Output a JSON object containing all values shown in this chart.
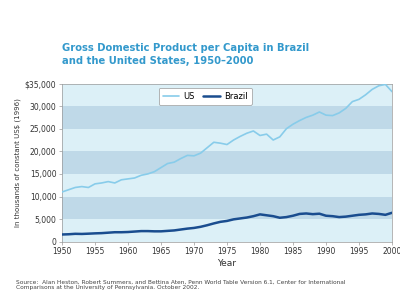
{
  "title_line1": "Gross Domestic Product per Capita in Brazil",
  "title_line2": "and the United States, 1950–2000",
  "title_color": "#3399CC",
  "xlabel": "Year",
  "ylabel": "In thousands of constant US$ (1996)",
  "ylim": [
    0,
    35000
  ],
  "yticks": [
    0,
    5000,
    10000,
    15000,
    20000,
    25000,
    30000,
    35000
  ],
  "ytick_labels": [
    "0",
    "5,000",
    "10,000",
    "15,000",
    "20,000",
    "25,000",
    "30,000",
    "$35,000"
  ],
  "xticks": [
    1950,
    1955,
    1960,
    1965,
    1970,
    1975,
    1980,
    1985,
    1990,
    1995,
    2000
  ],
  "bg_color": "#FFFFFF",
  "plot_bg_light": "#DCF0F7",
  "plot_bg_dark": "#BFD9E8",
  "us_color": "#88CCEA",
  "brazil_color": "#1A4D8F",
  "source_text": "Source:  Alan Heston, Robert Summers, and Bettina Aten, Penn World Table Version 6.1, Center for International\nComparisons at the University of Pennsylvania. October 2002.",
  "us_data": {
    "years": [
      1950,
      1951,
      1952,
      1953,
      1954,
      1955,
      1956,
      1957,
      1958,
      1959,
      1960,
      1961,
      1962,
      1963,
      1964,
      1965,
      1966,
      1967,
      1968,
      1969,
      1970,
      1971,
      1972,
      1973,
      1974,
      1975,
      1976,
      1977,
      1978,
      1979,
      1980,
      1981,
      1982,
      1983,
      1984,
      1985,
      1986,
      1987,
      1988,
      1989,
      1990,
      1991,
      1992,
      1993,
      1994,
      1995,
      1996,
      1997,
      1998,
      1999,
      2000
    ],
    "values": [
      11000,
      11500,
      12000,
      12200,
      12000,
      12800,
      13000,
      13300,
      13000,
      13700,
      13900,
      14100,
      14700,
      15000,
      15500,
      16400,
      17300,
      17600,
      18400,
      19100,
      19000,
      19600,
      20800,
      22000,
      21800,
      21500,
      22500,
      23300,
      24000,
      24500,
      23500,
      23800,
      22500,
      23200,
      25000,
      26000,
      26800,
      27500,
      28000,
      28700,
      28000,
      27900,
      28500,
      29500,
      31000,
      31500,
      32500,
      33700,
      34500,
      34800,
      33200
    ],
    "line_width": 1.2
  },
  "brazil_data": {
    "years": [
      1950,
      1951,
      1952,
      1953,
      1954,
      1955,
      1956,
      1957,
      1958,
      1959,
      1960,
      1961,
      1962,
      1963,
      1964,
      1965,
      1966,
      1967,
      1968,
      1969,
      1970,
      1971,
      1972,
      1973,
      1974,
      1975,
      1976,
      1977,
      1978,
      1979,
      1980,
      1981,
      1982,
      1983,
      1984,
      1985,
      1986,
      1987,
      1988,
      1989,
      1990,
      1991,
      1992,
      1993,
      1994,
      1995,
      1996,
      1997,
      1998,
      1999,
      2000
    ],
    "values": [
      1600,
      1650,
      1750,
      1720,
      1780,
      1850,
      1900,
      2000,
      2100,
      2100,
      2150,
      2250,
      2350,
      2350,
      2300,
      2300,
      2400,
      2500,
      2700,
      2900,
      3050,
      3300,
      3650,
      4050,
      4400,
      4600,
      4950,
      5150,
      5350,
      5650,
      6050,
      5850,
      5650,
      5300,
      5450,
      5750,
      6150,
      6250,
      6100,
      6200,
      5750,
      5650,
      5450,
      5550,
      5750,
      5950,
      6050,
      6250,
      6150,
      5950,
      6400
    ],
    "line_width": 1.8
  }
}
